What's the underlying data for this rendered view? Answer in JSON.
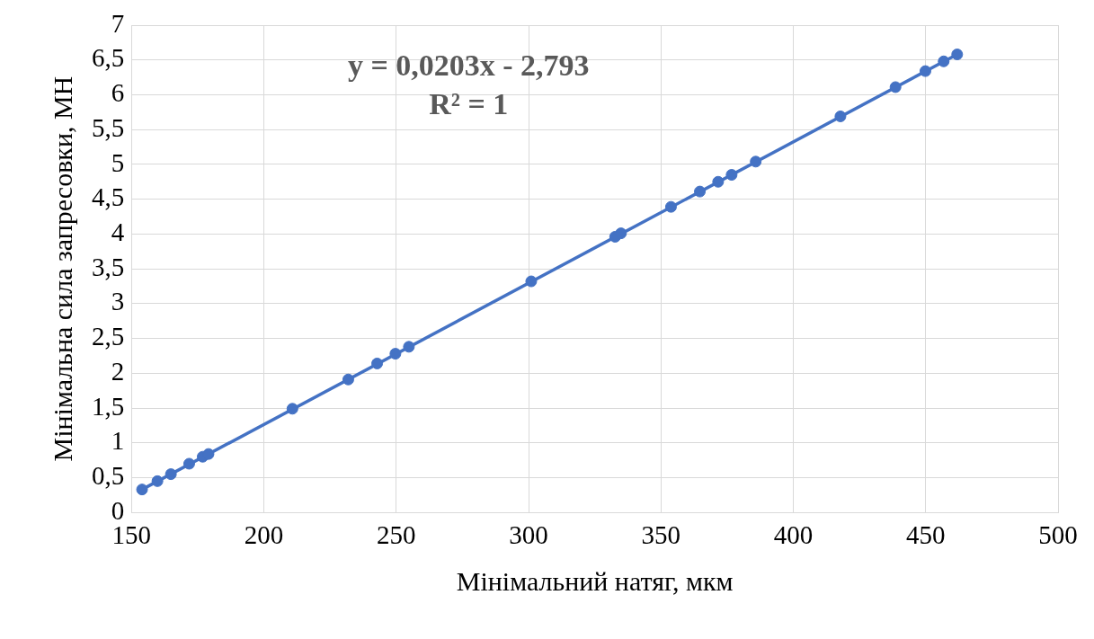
{
  "chart_data": {
    "type": "scatter",
    "xlabel": "Мінімальний натяг, мкм",
    "ylabel": "Мінімальна сила запресовки, МН",
    "xlim": [
      150,
      500
    ],
    "xticks": [
      150,
      200,
      250,
      300,
      350,
      400,
      450,
      500
    ],
    "ylim": [
      0,
      7
    ],
    "yticks": [
      0,
      {
        "value": 0.5,
        "label": "0,5"
      },
      1,
      {
        "value": 1.5,
        "label": "1,5"
      },
      2,
      {
        "value": 2.5,
        "label": "2,5"
      },
      3,
      {
        "value": 3.5,
        "label": "3,5"
      },
      4,
      {
        "value": 4.5,
        "label": "4,5"
      },
      5,
      {
        "value": 5.5,
        "label": "5,5"
      },
      6,
      {
        "value": 6.5,
        "label": "6,5"
      },
      7
    ],
    "grid": true,
    "legend": false,
    "marker": "circle",
    "annotations": [
      "y = 0,0203x - 2,793",
      "R² = 1"
    ],
    "series": [
      {
        "type": "scatter",
        "color": "#4472c4",
        "x": [
          154,
          159.8,
          164.9,
          171.8,
          176.9,
          179.1,
          210.8,
          231.9,
          242.8,
          249.7,
          254.8,
          301,
          332.7,
          334.9,
          353.8,
          364.7,
          371.6,
          376.7,
          385.8,
          417.8,
          438.6,
          449.9,
          456.8,
          461.9
        ],
        "values": [
          0.33,
          0.45,
          0.55,
          0.7,
          0.8,
          0.84,
          1.49,
          1.91,
          2.14,
          2.28,
          2.38,
          3.32,
          3.96,
          4.01,
          4.39,
          4.61,
          4.75,
          4.85,
          5.04,
          5.69,
          6.11,
          6.34,
          6.48,
          6.58
        ]
      },
      {
        "type": "line",
        "marker": "none",
        "color": "#4472c4",
        "x": [
          154,
          461.9
        ],
        "values": [
          0.33,
          6.58
        ]
      }
    ]
  }
}
